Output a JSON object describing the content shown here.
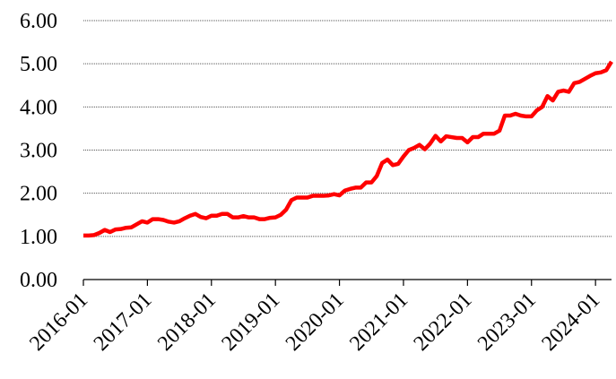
{
  "chart_data": {
    "type": "line",
    "categories": [
      "2016-01",
      null,
      null,
      null,
      null,
      null,
      null,
      null,
      null,
      null,
      null,
      null,
      "2017-01",
      null,
      null,
      null,
      null,
      null,
      null,
      null,
      null,
      null,
      null,
      null,
      "2018-01",
      null,
      null,
      null,
      null,
      null,
      null,
      null,
      null,
      null,
      null,
      null,
      "2019-01",
      null,
      null,
      null,
      null,
      null,
      null,
      null,
      null,
      null,
      null,
      null,
      "2020-01",
      null,
      null,
      null,
      null,
      null,
      null,
      null,
      null,
      null,
      null,
      null,
      "2021-01",
      null,
      null,
      null,
      null,
      null,
      null,
      null,
      null,
      null,
      null,
      null,
      "2022-01",
      null,
      null,
      null,
      null,
      null,
      null,
      null,
      null,
      null,
      null,
      null,
      "2023-01",
      null,
      null,
      null,
      null,
      null,
      null,
      null,
      null,
      null,
      null,
      null,
      "2024-01",
      null,
      null,
      null
    ],
    "series": [
      {
        "color": "#ff0000",
        "values": [
          1.02,
          1.02,
          1.03,
          1.08,
          1.15,
          1.1,
          1.16,
          1.17,
          1.2,
          1.21,
          1.28,
          1.35,
          1.32,
          1.4,
          1.4,
          1.38,
          1.34,
          1.32,
          1.35,
          1.42,
          1.48,
          1.52,
          1.45,
          1.42,
          1.48,
          1.48,
          1.52,
          1.52,
          1.44,
          1.44,
          1.47,
          1.44,
          1.44,
          1.4,
          1.4,
          1.43,
          1.44,
          1.5,
          1.62,
          1.84,
          1.9,
          1.9,
          1.9,
          1.94,
          1.94,
          1.94,
          1.95,
          1.98,
          1.95,
          2.06,
          2.1,
          2.13,
          2.13,
          2.25,
          2.25,
          2.4,
          2.7,
          2.78,
          2.65,
          2.68,
          2.85,
          3.0,
          3.05,
          3.12,
          3.02,
          3.15,
          3.33,
          3.2,
          3.32,
          3.3,
          3.28,
          3.28,
          3.18,
          3.3,
          3.3,
          3.38,
          3.38,
          3.38,
          3.45,
          3.8,
          3.8,
          3.84,
          3.8,
          3.78,
          3.78,
          3.92,
          4.0,
          4.25,
          4.15,
          4.35,
          4.38,
          4.35,
          4.55,
          4.58,
          4.65,
          4.72,
          4.78,
          4.8,
          4.85,
          5.05
        ]
      }
    ],
    "ylim": [
      0,
      6
    ],
    "yticks": [
      {
        "value": 0,
        "label": "0.00"
      },
      {
        "value": 1,
        "label": "1.00"
      },
      {
        "value": 2,
        "label": "2.00"
      },
      {
        "value": 3,
        "label": "3.00"
      },
      {
        "value": 4,
        "label": "4.00"
      },
      {
        "value": 5,
        "label": "5.00"
      },
      {
        "value": 6,
        "label": "6.00"
      }
    ],
    "grid": true
  }
}
